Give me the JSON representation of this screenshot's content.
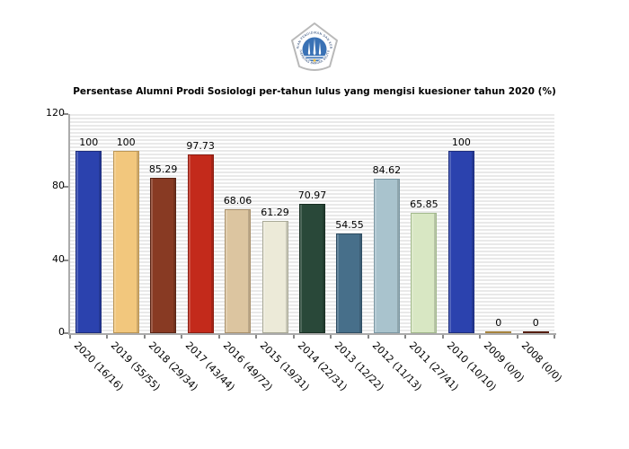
{
  "header": {
    "logo": {
      "top_arc_text": "KEMENTERIAN PENDIDIKAN DAN KEBUDAYAAN",
      "bottom_arc_text": "UNIVERSITAS BANGKA BELITUNG",
      "shield_border_color": "#b9b9b9",
      "circle_color": "#3a72b5",
      "spear_color": "#ffffff",
      "accent_dot_color": "#f0c040",
      "arc_text_color": "#1a3a6b"
    }
  },
  "chart_data": {
    "type": "bar",
    "title": "Persentase Alumni Prodi Sosiologi per-tahun lulus yang mengisi kuesioner tahun 2020 (%)",
    "categories": [
      "2020 (16/16)",
      "2019 (55/55)",
      "2018 (29/34)",
      "2017 (43/44)",
      "2016 (49/72)",
      "2015 (19/31)",
      "2014 (22/31)",
      "2013 (12/22)",
      "2012 (11/13)",
      "2011 (27/41)",
      "2010 (10/10)",
      "2009 (0/0)",
      "2008 (0/0)"
    ],
    "values": [
      100,
      100,
      85.29,
      97.73,
      68.06,
      61.29,
      70.97,
      54.55,
      84.62,
      65.85,
      100,
      0,
      0
    ],
    "value_labels": [
      "100",
      "100",
      "85.29",
      "97.73",
      "68.06",
      "61.29",
      "70.97",
      "54.55",
      "84.62",
      "65.85",
      "100",
      "0",
      "0"
    ],
    "bar_colors": [
      "#2b42ae",
      "#f2c77d",
      "#883a23",
      "#c32a1b",
      "#dcc5a0",
      "#ecead8",
      "#294839",
      "#476f8a",
      "#a9c3cd",
      "#d8e7c3",
      "#2b42ae",
      "#d8ae58",
      "#7b2d19"
    ],
    "bar_edge_colors": [
      "#1d2d7d",
      "#bb9555",
      "#5a2414",
      "#8a1d12",
      "#a9916c",
      "#a9a996",
      "#182e22",
      "#2e4d63",
      "#7b97a3",
      "#a2b98c",
      "#1d2d7d",
      "#a5823c",
      "#541d0e"
    ],
    "xlabel": "",
    "ylabel": "",
    "ylim": [
      0,
      120
    ],
    "yticks": [
      0,
      40,
      80,
      120
    ],
    "xlabel_rotation_deg": 45,
    "grid": false,
    "legend": null,
    "plot_background": "horizontal-stripes",
    "stripe_color": "#e9e9e9",
    "axis_color": "#ababab"
  }
}
